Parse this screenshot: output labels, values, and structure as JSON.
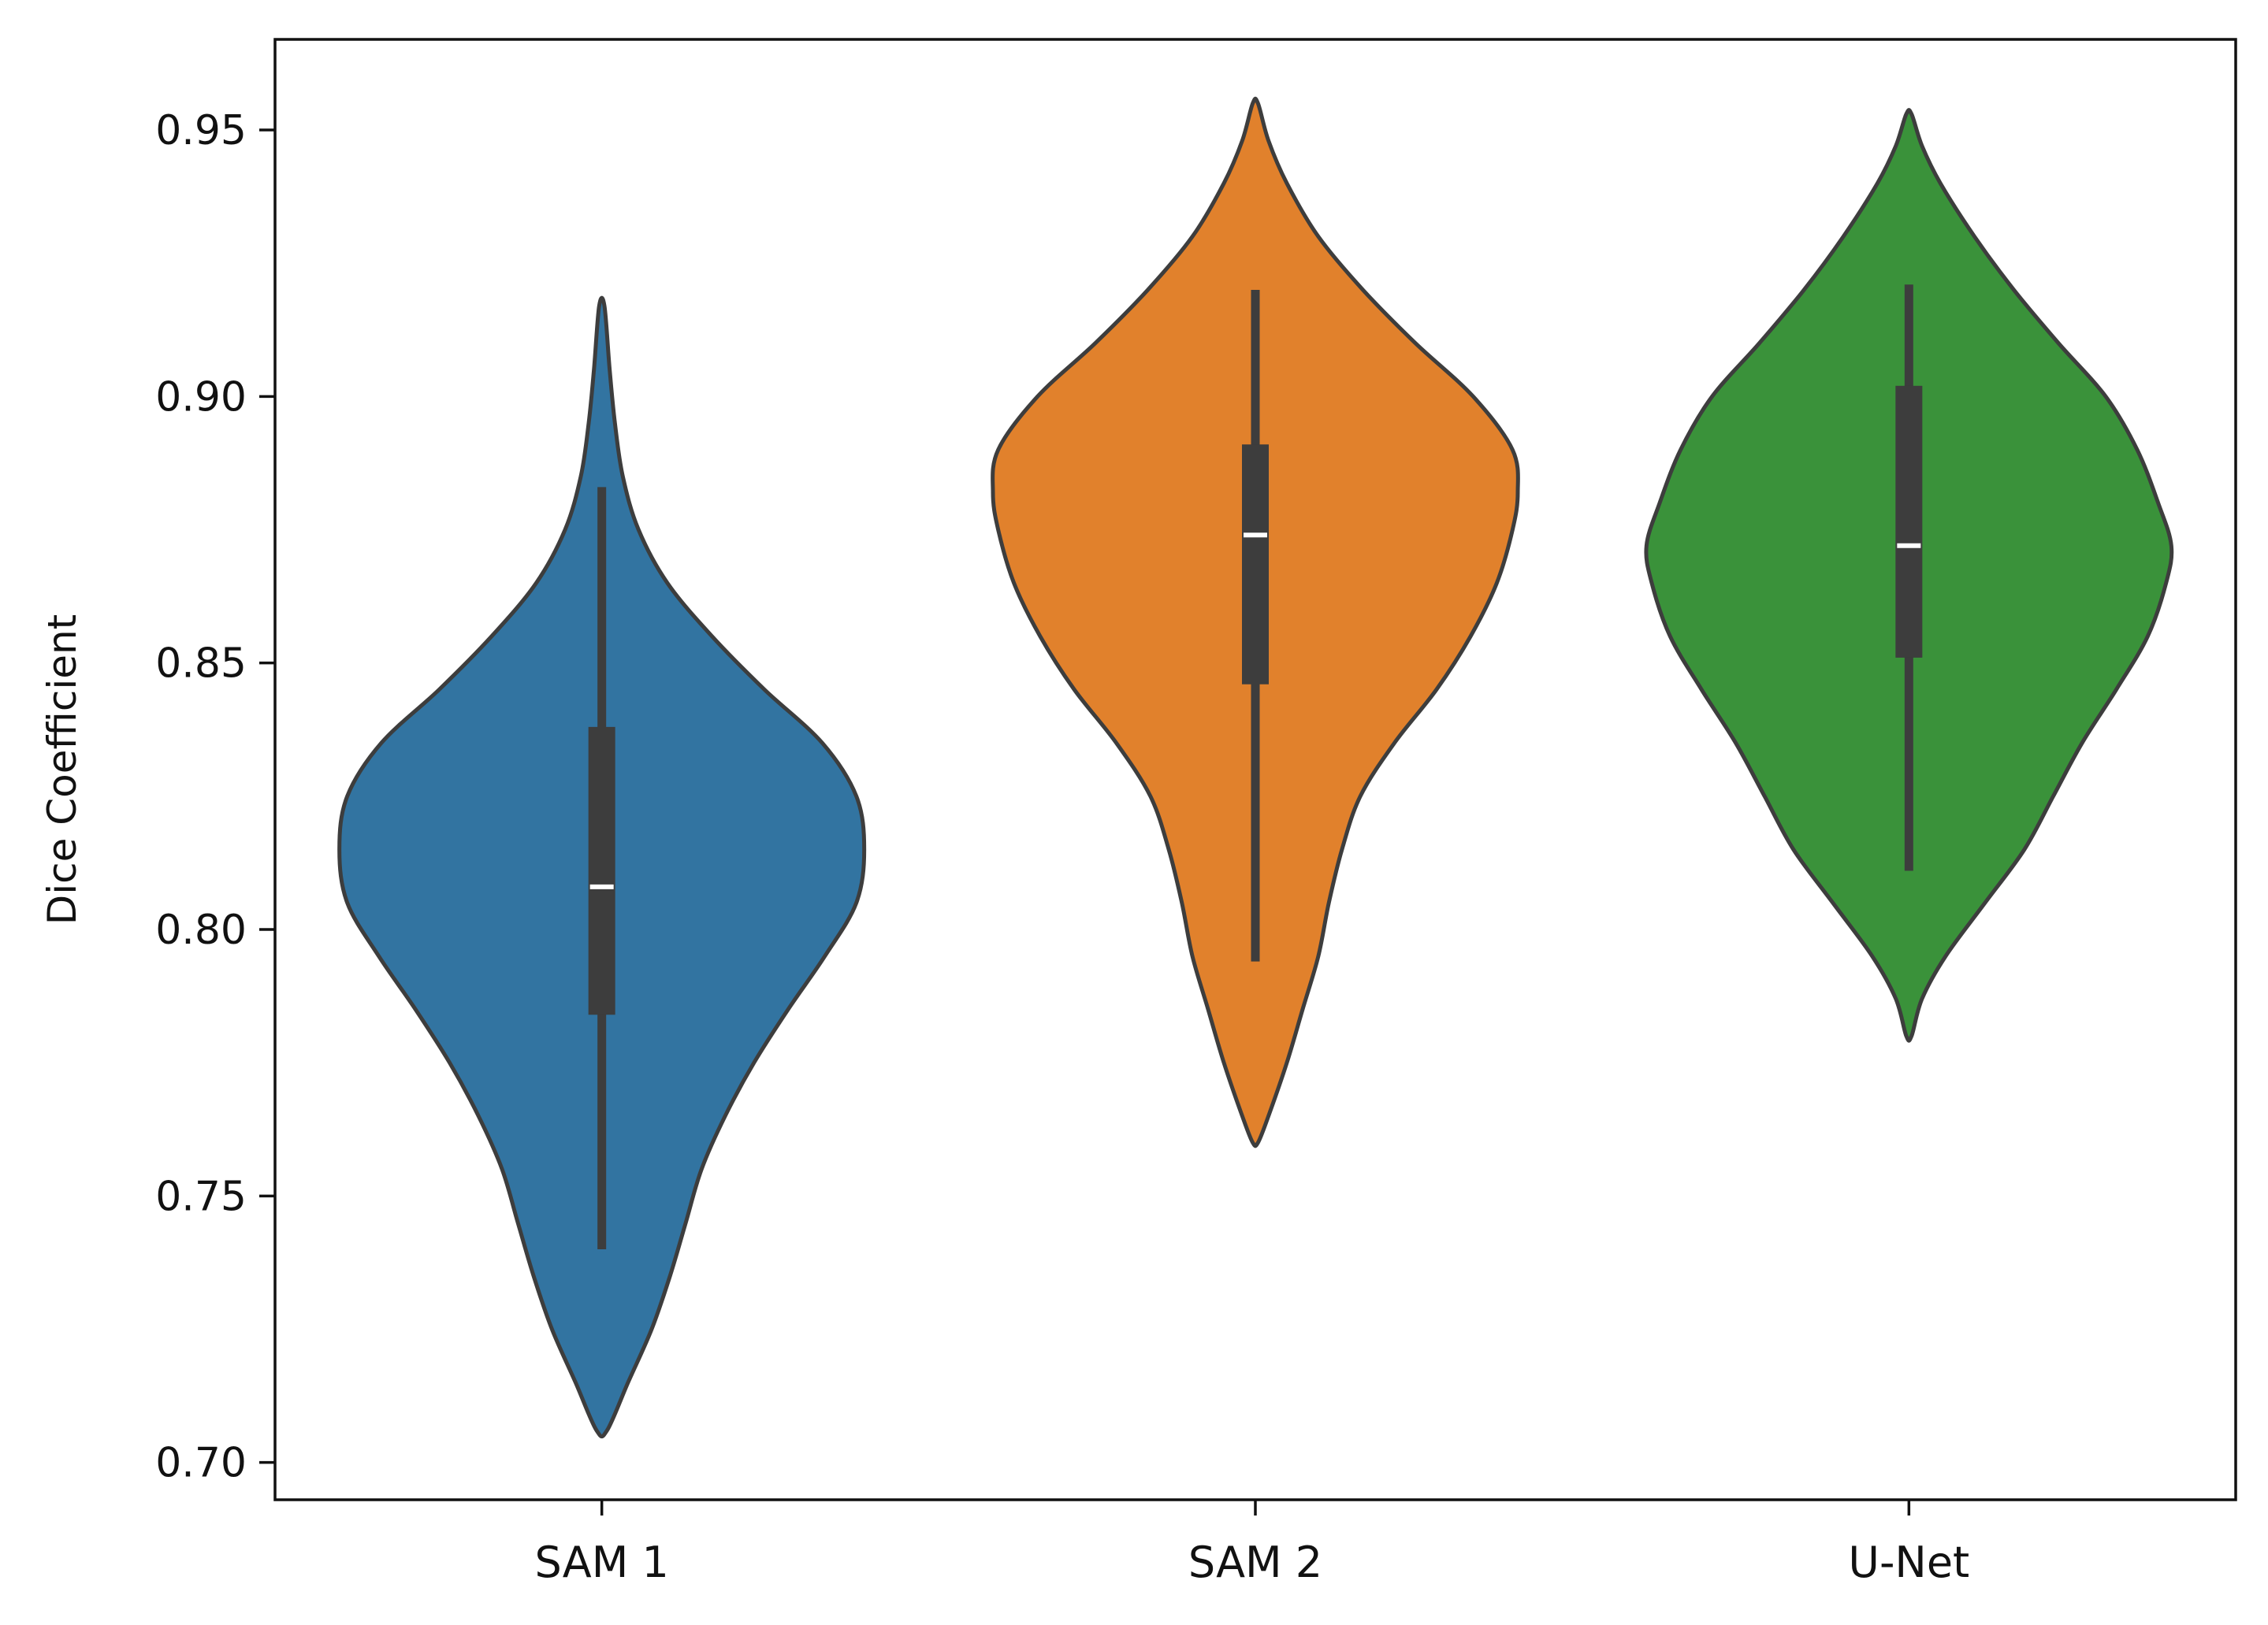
{
  "chart_data": {
    "type": "violin",
    "title": "",
    "xlabel": "",
    "ylabel": "Dice Coefficient",
    "ylim": [
      0.693,
      0.967
    ],
    "yticks": [
      "0.70",
      "0.75",
      "0.80",
      "0.85",
      "0.90",
      "0.95"
    ],
    "yticks_values": [
      0.7,
      0.75,
      0.8,
      0.85,
      0.9,
      0.95
    ],
    "categories": [
      "SAM 1",
      "SAM 2",
      "U-Net"
    ],
    "grid": false,
    "legend": "none",
    "series": [
      {
        "category": "SAM 1",
        "color": "#3274a1",
        "min": 0.74,
        "q1": 0.784,
        "median": 0.808,
        "q3": 0.838,
        "max": 0.883,
        "kde_range": [
          0.706,
          0.917
        ],
        "density_profile": [
          [
            0.706,
            0.02
          ],
          [
            0.715,
            0.1
          ],
          [
            0.725,
            0.19
          ],
          [
            0.735,
            0.26
          ],
          [
            0.745,
            0.32
          ],
          [
            0.755,
            0.38
          ],
          [
            0.765,
            0.47
          ],
          [
            0.775,
            0.58
          ],
          [
            0.785,
            0.71
          ],
          [
            0.795,
            0.85
          ],
          [
            0.805,
            0.97
          ],
          [
            0.815,
            1.0
          ],
          [
            0.825,
            0.97
          ],
          [
            0.835,
            0.84
          ],
          [
            0.845,
            0.62
          ],
          [
            0.855,
            0.42
          ],
          [
            0.865,
            0.25
          ],
          [
            0.875,
            0.14
          ],
          [
            0.885,
            0.08
          ],
          [
            0.895,
            0.05
          ],
          [
            0.905,
            0.03
          ],
          [
            0.917,
            0.01
          ]
        ]
      },
      {
        "category": "SAM 2",
        "color": "#e1812c",
        "min": 0.794,
        "q1": 0.846,
        "median": 0.874,
        "q3": 0.891,
        "max": 0.92,
        "kde_range": [
          0.76,
          0.955
        ],
        "density_profile": [
          [
            0.76,
            0.01
          ],
          [
            0.765,
            0.05
          ],
          [
            0.775,
            0.12
          ],
          [
            0.785,
            0.18
          ],
          [
            0.795,
            0.24
          ],
          [
            0.805,
            0.28
          ],
          [
            0.815,
            0.33
          ],
          [
            0.825,
            0.4
          ],
          [
            0.835,
            0.53
          ],
          [
            0.845,
            0.69
          ],
          [
            0.855,
            0.82
          ],
          [
            0.865,
            0.92
          ],
          [
            0.875,
            0.98
          ],
          [
            0.882,
            1.0
          ],
          [
            0.89,
            0.98
          ],
          [
            0.9,
            0.83
          ],
          [
            0.91,
            0.61
          ],
          [
            0.92,
            0.41
          ],
          [
            0.93,
            0.24
          ],
          [
            0.94,
            0.12
          ],
          [
            0.948,
            0.05
          ],
          [
            0.955,
            0.01
          ]
        ]
      },
      {
        "category": "U-Net",
        "color": "#3a923a",
        "min": 0.811,
        "q1": 0.851,
        "median": 0.872,
        "q3": 0.902,
        "max": 0.921,
        "kde_range": [
          0.78,
          0.953
        ],
        "density_profile": [
          [
            0.78,
            0.01
          ],
          [
            0.787,
            0.05
          ],
          [
            0.795,
            0.14
          ],
          [
            0.805,
            0.29
          ],
          [
            0.815,
            0.44
          ],
          [
            0.825,
            0.55
          ],
          [
            0.835,
            0.66
          ],
          [
            0.845,
            0.79
          ],
          [
            0.855,
            0.91
          ],
          [
            0.865,
            0.98
          ],
          [
            0.872,
            1.0
          ],
          [
            0.88,
            0.95
          ],
          [
            0.89,
            0.87
          ],
          [
            0.9,
            0.75
          ],
          [
            0.91,
            0.57
          ],
          [
            0.92,
            0.4
          ],
          [
            0.93,
            0.25
          ],
          [
            0.94,
            0.12
          ],
          [
            0.947,
            0.05
          ],
          [
            0.953,
            0.01
          ]
        ]
      }
    ]
  }
}
